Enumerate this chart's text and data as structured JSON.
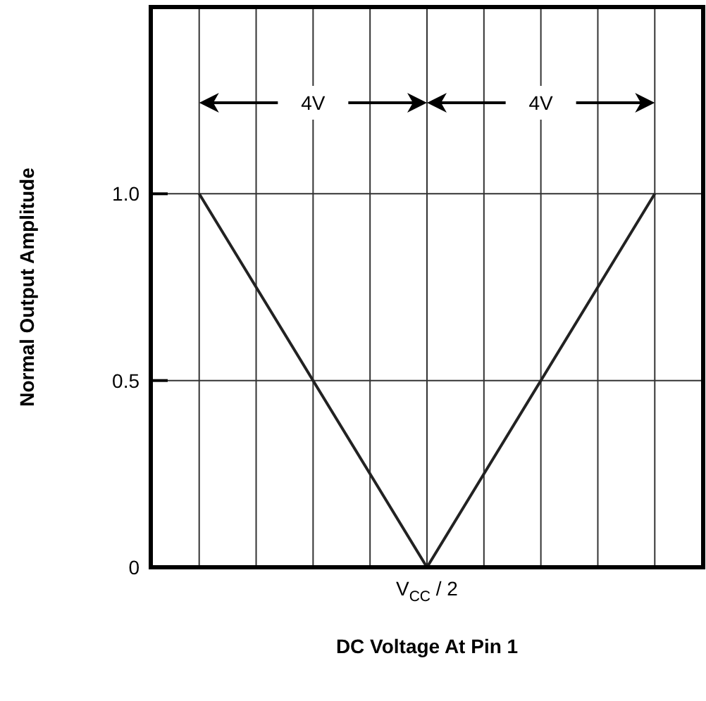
{
  "chart_data": {
    "type": "line",
    "xlabel": "DC Voltage At Pin 1",
    "ylabel": "Normal Output Amplitude",
    "categories": [
      null,
      null,
      null,
      null,
      "V$_{CC}$ / 2",
      null,
      null,
      null,
      null
    ],
    "series": [
      {
        "color": "#222222",
        "values": [
          1,
          0.75,
          0.5,
          0.25,
          0,
          0.25,
          0.5,
          0.75,
          1
        ]
      }
    ],
    "ylim": [
      0,
      1.5
    ],
    "yticks": [
      {
        "value": 0,
        "label": "0"
      },
      {
        "value": 0.5,
        "label": "0.5"
      },
      {
        "value": 1,
        "label": "1.0"
      }
    ],
    "grid": true,
    "annotations": [
      "4V",
      "4V"
    ]
  }
}
